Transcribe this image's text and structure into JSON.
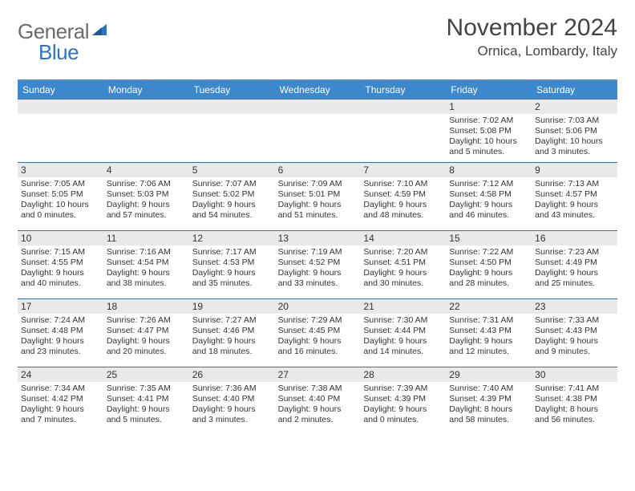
{
  "logo": {
    "general": "General",
    "blue": "Blue"
  },
  "title": "November 2024",
  "location": "Ornica, Lombardy, Italy",
  "colors": {
    "header_bg": "#3d87cc",
    "header_border_top": "#4a8fd1",
    "week_divider": "#3d6fa0",
    "daynum_bg": "#e9e9e9",
    "text": "#333333",
    "logo_gray": "#6b6b6b",
    "logo_blue": "#2b76bf"
  },
  "daysOfWeek": [
    "Sunday",
    "Monday",
    "Tuesday",
    "Wednesday",
    "Thursday",
    "Friday",
    "Saturday"
  ],
  "weeks": [
    [
      null,
      null,
      null,
      null,
      null,
      {
        "n": "1",
        "sunrise": "Sunrise: 7:02 AM",
        "sunset": "Sunset: 5:08 PM",
        "d1": "Daylight: 10 hours",
        "d2": "and 5 minutes."
      },
      {
        "n": "2",
        "sunrise": "Sunrise: 7:03 AM",
        "sunset": "Sunset: 5:06 PM",
        "d1": "Daylight: 10 hours",
        "d2": "and 3 minutes."
      }
    ],
    [
      {
        "n": "3",
        "sunrise": "Sunrise: 7:05 AM",
        "sunset": "Sunset: 5:05 PM",
        "d1": "Daylight: 10 hours",
        "d2": "and 0 minutes."
      },
      {
        "n": "4",
        "sunrise": "Sunrise: 7:06 AM",
        "sunset": "Sunset: 5:03 PM",
        "d1": "Daylight: 9 hours",
        "d2": "and 57 minutes."
      },
      {
        "n": "5",
        "sunrise": "Sunrise: 7:07 AM",
        "sunset": "Sunset: 5:02 PM",
        "d1": "Daylight: 9 hours",
        "d2": "and 54 minutes."
      },
      {
        "n": "6",
        "sunrise": "Sunrise: 7:09 AM",
        "sunset": "Sunset: 5:01 PM",
        "d1": "Daylight: 9 hours",
        "d2": "and 51 minutes."
      },
      {
        "n": "7",
        "sunrise": "Sunrise: 7:10 AM",
        "sunset": "Sunset: 4:59 PM",
        "d1": "Daylight: 9 hours",
        "d2": "and 48 minutes."
      },
      {
        "n": "8",
        "sunrise": "Sunrise: 7:12 AM",
        "sunset": "Sunset: 4:58 PM",
        "d1": "Daylight: 9 hours",
        "d2": "and 46 minutes."
      },
      {
        "n": "9",
        "sunrise": "Sunrise: 7:13 AM",
        "sunset": "Sunset: 4:57 PM",
        "d1": "Daylight: 9 hours",
        "d2": "and 43 minutes."
      }
    ],
    [
      {
        "n": "10",
        "sunrise": "Sunrise: 7:15 AM",
        "sunset": "Sunset: 4:55 PM",
        "d1": "Daylight: 9 hours",
        "d2": "and 40 minutes."
      },
      {
        "n": "11",
        "sunrise": "Sunrise: 7:16 AM",
        "sunset": "Sunset: 4:54 PM",
        "d1": "Daylight: 9 hours",
        "d2": "and 38 minutes."
      },
      {
        "n": "12",
        "sunrise": "Sunrise: 7:17 AM",
        "sunset": "Sunset: 4:53 PM",
        "d1": "Daylight: 9 hours",
        "d2": "and 35 minutes."
      },
      {
        "n": "13",
        "sunrise": "Sunrise: 7:19 AM",
        "sunset": "Sunset: 4:52 PM",
        "d1": "Daylight: 9 hours",
        "d2": "and 33 minutes."
      },
      {
        "n": "14",
        "sunrise": "Sunrise: 7:20 AM",
        "sunset": "Sunset: 4:51 PM",
        "d1": "Daylight: 9 hours",
        "d2": "and 30 minutes."
      },
      {
        "n": "15",
        "sunrise": "Sunrise: 7:22 AM",
        "sunset": "Sunset: 4:50 PM",
        "d1": "Daylight: 9 hours",
        "d2": "and 28 minutes."
      },
      {
        "n": "16",
        "sunrise": "Sunrise: 7:23 AM",
        "sunset": "Sunset: 4:49 PM",
        "d1": "Daylight: 9 hours",
        "d2": "and 25 minutes."
      }
    ],
    [
      {
        "n": "17",
        "sunrise": "Sunrise: 7:24 AM",
        "sunset": "Sunset: 4:48 PM",
        "d1": "Daylight: 9 hours",
        "d2": "and 23 minutes."
      },
      {
        "n": "18",
        "sunrise": "Sunrise: 7:26 AM",
        "sunset": "Sunset: 4:47 PM",
        "d1": "Daylight: 9 hours",
        "d2": "and 20 minutes."
      },
      {
        "n": "19",
        "sunrise": "Sunrise: 7:27 AM",
        "sunset": "Sunset: 4:46 PM",
        "d1": "Daylight: 9 hours",
        "d2": "and 18 minutes."
      },
      {
        "n": "20",
        "sunrise": "Sunrise: 7:29 AM",
        "sunset": "Sunset: 4:45 PM",
        "d1": "Daylight: 9 hours",
        "d2": "and 16 minutes."
      },
      {
        "n": "21",
        "sunrise": "Sunrise: 7:30 AM",
        "sunset": "Sunset: 4:44 PM",
        "d1": "Daylight: 9 hours",
        "d2": "and 14 minutes."
      },
      {
        "n": "22",
        "sunrise": "Sunrise: 7:31 AM",
        "sunset": "Sunset: 4:43 PM",
        "d1": "Daylight: 9 hours",
        "d2": "and 12 minutes."
      },
      {
        "n": "23",
        "sunrise": "Sunrise: 7:33 AM",
        "sunset": "Sunset: 4:43 PM",
        "d1": "Daylight: 9 hours",
        "d2": "and 9 minutes."
      }
    ],
    [
      {
        "n": "24",
        "sunrise": "Sunrise: 7:34 AM",
        "sunset": "Sunset: 4:42 PM",
        "d1": "Daylight: 9 hours",
        "d2": "and 7 minutes."
      },
      {
        "n": "25",
        "sunrise": "Sunrise: 7:35 AM",
        "sunset": "Sunset: 4:41 PM",
        "d1": "Daylight: 9 hours",
        "d2": "and 5 minutes."
      },
      {
        "n": "26",
        "sunrise": "Sunrise: 7:36 AM",
        "sunset": "Sunset: 4:40 PM",
        "d1": "Daylight: 9 hours",
        "d2": "and 3 minutes."
      },
      {
        "n": "27",
        "sunrise": "Sunrise: 7:38 AM",
        "sunset": "Sunset: 4:40 PM",
        "d1": "Daylight: 9 hours",
        "d2": "and 2 minutes."
      },
      {
        "n": "28",
        "sunrise": "Sunrise: 7:39 AM",
        "sunset": "Sunset: 4:39 PM",
        "d1": "Daylight: 9 hours",
        "d2": "and 0 minutes."
      },
      {
        "n": "29",
        "sunrise": "Sunrise: 7:40 AM",
        "sunset": "Sunset: 4:39 PM",
        "d1": "Daylight: 8 hours",
        "d2": "and 58 minutes."
      },
      {
        "n": "30",
        "sunrise": "Sunrise: 7:41 AM",
        "sunset": "Sunset: 4:38 PM",
        "d1": "Daylight: 8 hours",
        "d2": "and 56 minutes."
      }
    ]
  ]
}
